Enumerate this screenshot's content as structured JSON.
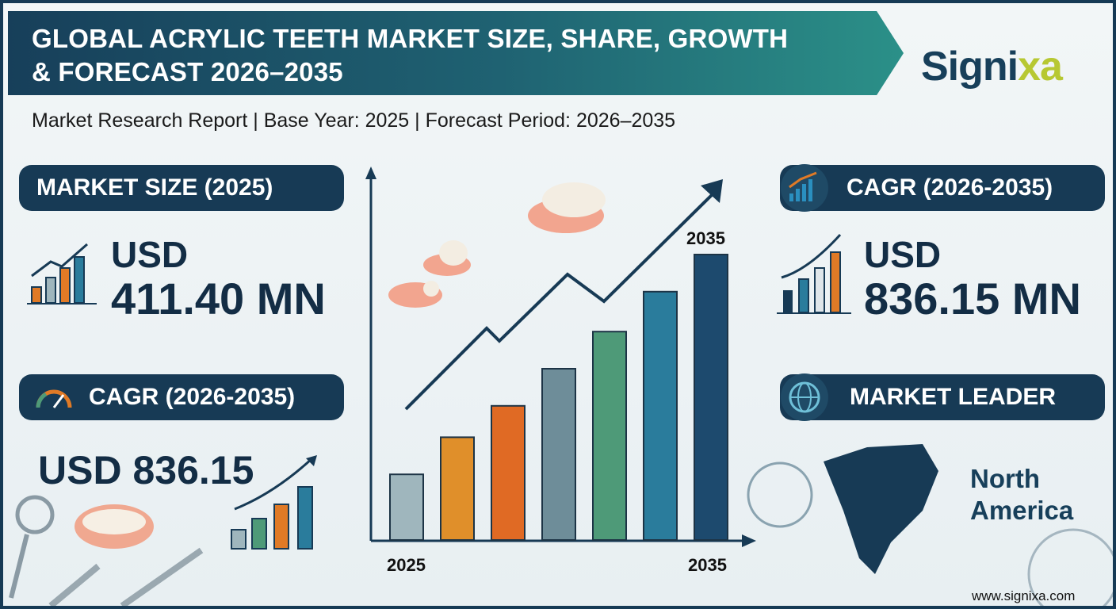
{
  "header": {
    "title_line1": "GLOBAL ACRYLIC TEETH MARKET SIZE, SHARE, GROWTH",
    "title_line2": "& FORECAST 2026–2035",
    "subtitle": "Market Research Report | Base Year: 2025 | Forecast Period: 2026–2035"
  },
  "logo": {
    "text_main": "Signi",
    "text_accent": "xa",
    "accent_color": "#b7c832",
    "brand_color": "#173f5a"
  },
  "market_size": {
    "label": "MARKET SIZE (2025)",
    "currency": "USD",
    "value": "411.40 MN"
  },
  "cagr_left": {
    "label": "CAGR (2026-2035)",
    "value": "USD 836.15"
  },
  "cagr_right": {
    "label": "CAGR (2026-2035)",
    "currency": "USD",
    "value": "836.15 MN"
  },
  "market_leader": {
    "label": "MARKET LEADER",
    "region_line1": "North",
    "region_line2": "America"
  },
  "chart_data": {
    "type": "bar",
    "x_start_label": "2025",
    "x_end_label": "2035",
    "top_label": "2035",
    "relative_bar_levels": [
      0.23,
      0.36,
      0.47,
      0.6,
      0.73,
      0.87,
      1.0
    ],
    "bar_colors": [
      "#9fb6bd",
      "#e08f2a",
      "#e06a24",
      "#6e8d99",
      "#4e9a78",
      "#2a7c9c",
      "#1d4a6e"
    ]
  },
  "footer": {
    "website": "www.signixa.com"
  }
}
